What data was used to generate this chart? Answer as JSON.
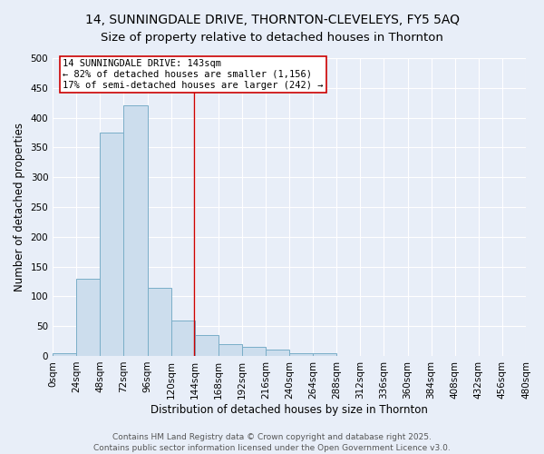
{
  "title_line1": "14, SUNNINGDALE DRIVE, THORNTON-CLEVELEYS, FY5 5AQ",
  "title_line2": "Size of property relative to detached houses in Thornton",
  "xlabel": "Distribution of detached houses by size in Thornton",
  "ylabel": "Number of detached properties",
  "bin_edges": [
    0,
    24,
    48,
    72,
    96,
    120,
    144,
    168,
    192,
    216,
    240,
    264,
    288,
    312,
    336,
    360,
    384,
    408,
    432,
    456,
    480
  ],
  "bar_heights": [
    5,
    130,
    375,
    420,
    115,
    60,
    35,
    20,
    15,
    10,
    5,
    5,
    0,
    0,
    0,
    0,
    0,
    0,
    0,
    0
  ],
  "bar_color": "#ccdded",
  "bar_edge_color": "#7aaec8",
  "property_size": 143,
  "vline_color": "#cc0000",
  "annotation_text": "14 SUNNINGDALE DRIVE: 143sqm\n← 82% of detached houses are smaller (1,156)\n17% of semi-detached houses are larger (242) →",
  "annotation_box_color": "#ffffff",
  "annotation_border_color": "#cc0000",
  "ylim": [
    0,
    500
  ],
  "yticks": [
    0,
    50,
    100,
    150,
    200,
    250,
    300,
    350,
    400,
    450,
    500
  ],
  "bg_color": "#e8eef8",
  "plot_bg_color": "#e8eef8",
  "grid_color": "#ffffff",
  "footer_line1": "Contains HM Land Registry data © Crown copyright and database right 2025.",
  "footer_line2": "Contains public sector information licensed under the Open Government Licence v3.0.",
  "title_fontsize": 10,
  "subtitle_fontsize": 9.5,
  "axis_label_fontsize": 8.5,
  "tick_fontsize": 7.5,
  "annotation_fontsize": 7.5,
  "footer_fontsize": 6.5
}
